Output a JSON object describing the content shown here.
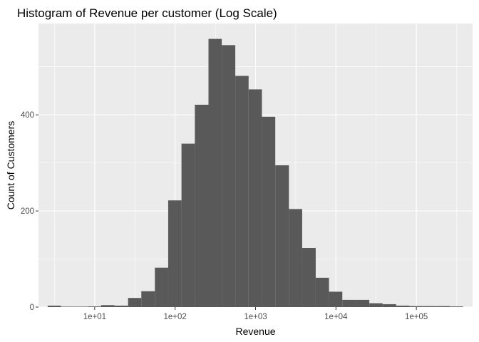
{
  "chart_data": {
    "type": "bar",
    "title": "Histogram of Revenue per customer (Log Scale)",
    "xlabel": "Revenue",
    "ylabel": "Count of Customers",
    "x_scale": "log10",
    "xlim": [
      2.0,
      500000
    ],
    "ylim": [
      0,
      590
    ],
    "x_ticks": [
      {
        "value": 10,
        "label": "1e+01"
      },
      {
        "value": 100,
        "label": "1e+02"
      },
      {
        "value": 1000,
        "label": "1e+03"
      },
      {
        "value": 10000,
        "label": "1e+04"
      },
      {
        "value": 100000,
        "label": "1e+05"
      }
    ],
    "y_ticks": [
      {
        "value": 0,
        "label": "0"
      },
      {
        "value": 200,
        "label": "200"
      },
      {
        "value": 400,
        "label": "400"
      }
    ],
    "grid": true,
    "bins": [
      {
        "from": 2.6,
        "to": 3.8,
        "count": 3
      },
      {
        "from": 3.8,
        "to": 5.6,
        "count": 0
      },
      {
        "from": 5.6,
        "to": 8.2,
        "count": 0
      },
      {
        "from": 8.2,
        "to": 12,
        "count": 1
      },
      {
        "from": 12,
        "to": 17.6,
        "count": 4
      },
      {
        "from": 17.6,
        "to": 26,
        "count": 3
      },
      {
        "from": 26,
        "to": 38,
        "count": 19
      },
      {
        "from": 38,
        "to": 56,
        "count": 33
      },
      {
        "from": 56,
        "to": 82,
        "count": 82
      },
      {
        "from": 82,
        "to": 120,
        "count": 222
      },
      {
        "from": 120,
        "to": 176,
        "count": 340
      },
      {
        "from": 176,
        "to": 260,
        "count": 421
      },
      {
        "from": 260,
        "to": 380,
        "count": 558
      },
      {
        "from": 380,
        "to": 560,
        "count": 545
      },
      {
        "from": 560,
        "to": 820,
        "count": 481
      },
      {
        "from": 820,
        "to": 1200,
        "count": 453
      },
      {
        "from": 1200,
        "to": 1760,
        "count": 396
      },
      {
        "from": 1760,
        "to": 2600,
        "count": 295
      },
      {
        "from": 2600,
        "to": 3800,
        "count": 204
      },
      {
        "from": 3800,
        "to": 5600,
        "count": 123
      },
      {
        "from": 5600,
        "to": 8200,
        "count": 61
      },
      {
        "from": 8200,
        "to": 12000,
        "count": 32
      },
      {
        "from": 12000,
        "to": 17600,
        "count": 15
      },
      {
        "from": 17600,
        "to": 26000,
        "count": 15
      },
      {
        "from": 26000,
        "to": 38000,
        "count": 8
      },
      {
        "from": 38000,
        "to": 56000,
        "count": 6
      },
      {
        "from": 56000,
        "to": 82000,
        "count": 3
      },
      {
        "from": 82000,
        "to": 120000,
        "count": 2
      },
      {
        "from": 120000,
        "to": 176000,
        "count": 2
      },
      {
        "from": 176000,
        "to": 260000,
        "count": 2
      },
      {
        "from": 260000,
        "to": 380000,
        "count": 1
      }
    ],
    "colors": {
      "panel_background": "#ebebeb",
      "grid_major": "#ffffff",
      "bar_fill": "#595959",
      "tick_text": "#4d4d4d"
    }
  }
}
